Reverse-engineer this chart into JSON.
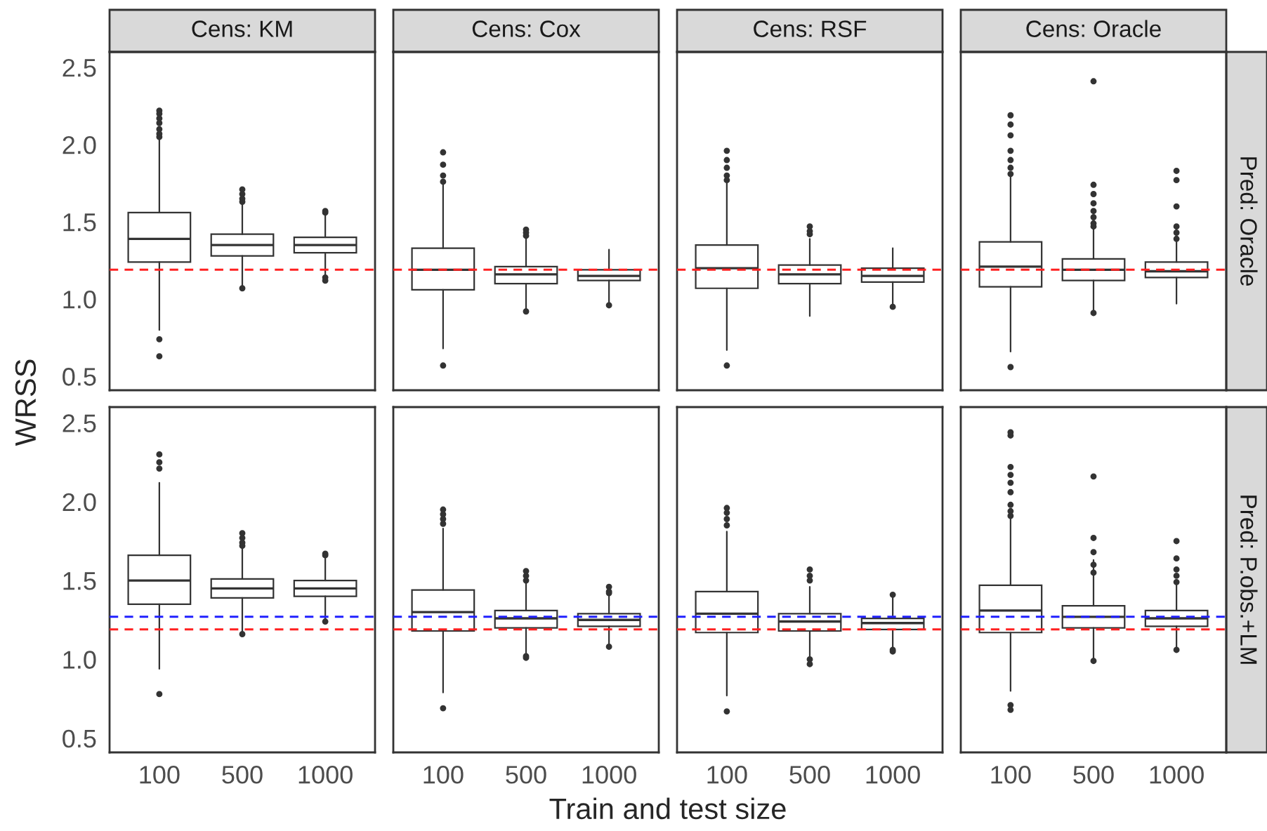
{
  "chart_data": [
    {
      "type": "box",
      "title": "Cens: KM",
      "ylabel": "WRSS",
      "categories": [
        "100",
        "500",
        "1000"
      ],
      "ylim": [
        0.41,
        2.6
      ],
      "yticks": [
        {
          "value": 0.5,
          "label": "0.5"
        },
        {
          "value": 1.0,
          "label": "1.0"
        },
        {
          "value": 1.5,
          "label": "1.5"
        },
        {
          "value": 2.0,
          "label": "2.0"
        },
        {
          "value": 2.5,
          "label": "2.5"
        }
      ],
      "tick_labels": "y",
      "ref_lines": [
        {
          "axis": "y",
          "value": 1.19,
          "color": "#ff2020",
          "line_style": "dashed"
        }
      ],
      "boxes": [
        {
          "low": 0.8,
          "q1": 1.24,
          "median": 1.39,
          "q3": 1.56,
          "high": 2.04,
          "outliers": [
            2.22,
            2.2,
            2.17,
            2.14,
            2.1,
            2.07,
            2.05,
            0.74,
            0.63
          ]
        },
        {
          "low": 1.08,
          "q1": 1.28,
          "median": 1.35,
          "q3": 1.42,
          "high": 1.62,
          "outliers": [
            1.71,
            1.68,
            1.65,
            1.63,
            1.07
          ]
        },
        {
          "low": 1.15,
          "q1": 1.3,
          "median": 1.35,
          "q3": 1.4,
          "high": 1.54,
          "outliers": [
            1.57,
            1.56,
            1.14,
            1.12
          ]
        }
      ]
    },
    {
      "type": "box",
      "title": "Cens: Cox",
      "categories": [
        "100",
        "500",
        "1000"
      ],
      "ylim": [
        0.41,
        2.6
      ],
      "tick_labels": false,
      "ref_lines": [
        {
          "axis": "y",
          "value": 1.19,
          "color": "#ff2020",
          "line_style": "dashed"
        }
      ],
      "boxes": [
        {
          "low": 0.68,
          "q1": 1.06,
          "median": 1.19,
          "q3": 1.33,
          "high": 1.75,
          "outliers": [
            1.95,
            1.87,
            1.8,
            1.76,
            0.57
          ]
        },
        {
          "low": 0.93,
          "q1": 1.1,
          "median": 1.16,
          "q3": 1.21,
          "high": 1.39,
          "outliers": [
            1.45,
            1.43,
            1.41,
            0.92
          ]
        },
        {
          "low": 0.97,
          "q1": 1.12,
          "median": 1.15,
          "q3": 1.19,
          "high": 1.32,
          "outliers": [
            0.96
          ]
        }
      ]
    },
    {
      "type": "box",
      "title": "Cens: RSF",
      "categories": [
        "100",
        "500",
        "1000"
      ],
      "ylim": [
        0.41,
        2.6
      ],
      "tick_labels": false,
      "ref_lines": [
        {
          "axis": "y",
          "value": 1.19,
          "color": "#ff2020",
          "line_style": "dashed"
        }
      ],
      "boxes": [
        {
          "low": 0.67,
          "q1": 1.07,
          "median": 1.2,
          "q3": 1.35,
          "high": 1.75,
          "outliers": [
            1.96,
            1.9,
            1.85,
            1.8,
            1.77,
            0.57
          ]
        },
        {
          "low": 0.89,
          "q1": 1.1,
          "median": 1.16,
          "q3": 1.22,
          "high": 1.39,
          "outliers": [
            1.47,
            1.44,
            1.42
          ]
        },
        {
          "low": 0.97,
          "q1": 1.11,
          "median": 1.15,
          "q3": 1.2,
          "high": 1.33,
          "outliers": [
            0.95
          ]
        }
      ]
    },
    {
      "type": "box",
      "title": "Cens: Oracle",
      "annotations": [
        "Pred: Oracle"
      ],
      "categories": [
        "100",
        "500",
        "1000"
      ],
      "ylim": [
        0.41,
        2.6
      ],
      "tick_labels": false,
      "ref_lines": [
        {
          "axis": "y",
          "value": 1.19,
          "color": "#ff2020",
          "line_style": "dashed"
        }
      ],
      "boxes": [
        {
          "low": 0.66,
          "q1": 1.08,
          "median": 1.21,
          "q3": 1.37,
          "high": 1.8,
          "outliers": [
            2.19,
            2.13,
            2.06,
            1.96,
            1.9,
            1.85,
            1.81,
            0.56
          ]
        },
        {
          "low": 0.92,
          "q1": 1.12,
          "median": 1.19,
          "q3": 1.26,
          "high": 1.45,
          "outliers": [
            2.41,
            1.74,
            1.68,
            1.62,
            1.57,
            1.53,
            1.49,
            1.47,
            0.91
          ]
        },
        {
          "low": 0.97,
          "q1": 1.14,
          "median": 1.18,
          "q3": 1.24,
          "high": 1.37,
          "outliers": [
            1.83,
            1.77,
            1.6,
            1.47,
            1.43,
            1.39
          ]
        }
      ]
    },
    {
      "type": "box",
      "xlabel": "Train and test size",
      "categories": [
        "100",
        "500",
        "1000"
      ],
      "ylim": [
        0.41,
        2.6
      ],
      "yticks": [
        {
          "value": 0.5,
          "label": "0.5"
        },
        {
          "value": 1.0,
          "label": "1.0"
        },
        {
          "value": 1.5,
          "label": "1.5"
        },
        {
          "value": 2.0,
          "label": "2.0"
        },
        {
          "value": 2.5,
          "label": "2.5"
        }
      ],
      "ref_lines": [
        {
          "axis": "y",
          "value": 1.27,
          "color": "#2020ff",
          "line_style": "dashed"
        },
        {
          "axis": "y",
          "value": 1.19,
          "color": "#ff2020",
          "line_style": "dashed"
        }
      ],
      "boxes": [
        {
          "low": 0.94,
          "q1": 1.35,
          "median": 1.5,
          "q3": 1.66,
          "high": 2.12,
          "outliers": [
            2.3,
            2.25,
            2.21,
            0.78
          ]
        },
        {
          "low": 1.17,
          "q1": 1.39,
          "median": 1.45,
          "q3": 1.51,
          "high": 1.71,
          "outliers": [
            1.8,
            1.77,
            1.74,
            1.72,
            1.16
          ]
        },
        {
          "low": 1.25,
          "q1": 1.4,
          "median": 1.45,
          "q3": 1.5,
          "high": 1.64,
          "outliers": [
            1.67,
            1.66,
            1.24
          ]
        }
      ]
    },
    {
      "type": "box",
      "categories": [
        "100",
        "500",
        "1000"
      ],
      "ylim": [
        0.41,
        2.6
      ],
      "tick_labels": "x",
      "ref_lines": [
        {
          "axis": "y",
          "value": 1.27,
          "color": "#2020ff",
          "line_style": "dashed"
        },
        {
          "axis": "y",
          "value": 1.19,
          "color": "#ff2020",
          "line_style": "dashed"
        }
      ],
      "boxes": [
        {
          "low": 0.79,
          "q1": 1.18,
          "median": 1.3,
          "q3": 1.44,
          "high": 1.83,
          "outliers": [
            1.95,
            1.92,
            1.89,
            1.86,
            0.69
          ]
        },
        {
          "low": 1.03,
          "q1": 1.2,
          "median": 1.26,
          "q3": 1.31,
          "high": 1.48,
          "outliers": [
            1.56,
            1.53,
            1.5,
            1.02,
            1.01
          ]
        },
        {
          "low": 1.09,
          "q1": 1.21,
          "median": 1.25,
          "q3": 1.29,
          "high": 1.41,
          "outliers": [
            1.46,
            1.43,
            1.42,
            1.08
          ]
        }
      ]
    },
    {
      "type": "box",
      "categories": [
        "100",
        "500",
        "1000"
      ],
      "ylim": [
        0.41,
        2.6
      ],
      "tick_labels": "x",
      "ref_lines": [
        {
          "axis": "y",
          "value": 1.27,
          "color": "#2020ff",
          "line_style": "dashed"
        },
        {
          "axis": "y",
          "value": 1.19,
          "color": "#ff2020",
          "line_style": "dashed"
        }
      ],
      "boxes": [
        {
          "low": 0.77,
          "q1": 1.17,
          "median": 1.29,
          "q3": 1.43,
          "high": 1.81,
          "outliers": [
            1.96,
            1.93,
            1.89,
            1.85,
            0.67
          ]
        },
        {
          "low": 1.02,
          "q1": 1.18,
          "median": 1.24,
          "q3": 1.29,
          "high": 1.46,
          "outliers": [
            1.57,
            1.53,
            1.5,
            1.0,
            0.97
          ]
        },
        {
          "low": 1.07,
          "q1": 1.19,
          "median": 1.23,
          "q3": 1.26,
          "high": 1.4,
          "outliers": [
            1.41,
            1.06,
            1.05
          ]
        }
      ]
    },
    {
      "type": "box",
      "annotations": [
        "Pred: P.obs.+LM"
      ],
      "categories": [
        "100",
        "500",
        "1000"
      ],
      "ylim": [
        0.41,
        2.6
      ],
      "tick_labels": "x",
      "ref_lines": [
        {
          "axis": "y",
          "value": 1.27,
          "color": "#2020ff",
          "line_style": "dashed"
        },
        {
          "axis": "y",
          "value": 1.19,
          "color": "#ff2020",
          "line_style": "dashed"
        }
      ],
      "boxes": [
        {
          "low": 0.8,
          "q1": 1.17,
          "median": 1.31,
          "q3": 1.47,
          "high": 1.89,
          "outliers": [
            2.44,
            2.42,
            2.22,
            2.17,
            2.12,
            2.06,
            1.98,
            1.94,
            1.91,
            0.71,
            0.68
          ]
        },
        {
          "low": 1.0,
          "q1": 1.2,
          "median": 1.27,
          "q3": 1.34,
          "high": 1.63,
          "outliers": [
            2.16,
            1.77,
            1.68,
            1.6,
            1.55,
            0.99
          ]
        },
        {
          "low": 1.07,
          "q1": 1.21,
          "median": 1.26,
          "q3": 1.31,
          "high": 1.47,
          "outliers": [
            1.75,
            1.64,
            1.57,
            1.53,
            1.49,
            1.06
          ]
        }
      ]
    }
  ]
}
